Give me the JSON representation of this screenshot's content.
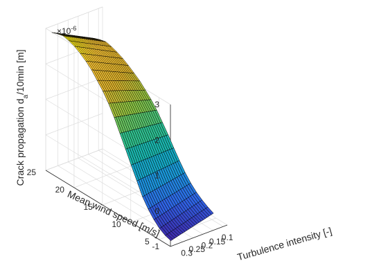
{
  "chart_data": {
    "type": "surface3d",
    "title": "",
    "xlabel": "Turbulence intensity [-]",
    "ylabel": "Mean wind speed [m/s]",
    "zlabel": "Crack propagation d_a/10min [m]",
    "z_exponent_label": "×10",
    "z_exponent_power": "-6",
    "xlim": [
      0.08,
      0.36
    ],
    "ylim": [
      3,
      25
    ],
    "zlim": [
      -1,
      3
    ],
    "xticks": [
      "0.1",
      "0.15",
      "0.2",
      "0.25",
      "0.3"
    ],
    "xtick_values": [
      0.1,
      0.15,
      0.2,
      0.25,
      0.3
    ],
    "yticks": [
      "5",
      "10",
      "15",
      "20",
      "25"
    ],
    "ytick_values": [
      5,
      10,
      15,
      20,
      25
    ],
    "zticks": [
      "-1",
      "0",
      "1",
      "2",
      "3"
    ],
    "ztick_values": [
      -1,
      0,
      1,
      2,
      3
    ],
    "grid": true,
    "colormap": [
      "#3e26a8",
      "#2f63e4",
      "#1b94d9",
      "#12b2b8",
      "#33c389",
      "#8dc643",
      "#e3b72c",
      "#fec835",
      "#f9fb0e"
    ],
    "surface": {
      "x": [
        0.12,
        0.13,
        0.14,
        0.15,
        0.16,
        0.17,
        0.18,
        0.19,
        0.2,
        0.21,
        0.22,
        0.23,
        0.24,
        0.25,
        0.26,
        0.27,
        0.28,
        0.29,
        0.3,
        0.31,
        0.32,
        0.33
      ],
      "y": [
        4,
        5,
        6,
        7,
        8,
        9,
        10,
        11,
        12,
        13,
        14,
        15,
        16,
        17,
        18,
        19,
        20,
        21,
        22,
        23,
        24,
        25
      ],
      "z_at_x_max": [
        -1.0,
        -0.95,
        -0.85,
        -0.7,
        -0.5,
        -0.25,
        0.1,
        0.45,
        0.8,
        1.15,
        1.5,
        1.8,
        2.05,
        2.25,
        2.45,
        2.6,
        2.72,
        2.82,
        2.88,
        2.92,
        2.88,
        2.82
      ],
      "z_at_x_min": [
        -0.68,
        -0.6,
        -0.5,
        -0.38,
        -0.22,
        -0.02,
        0.22,
        0.48,
        0.75,
        1.0,
        1.25,
        1.45,
        1.62,
        1.78,
        1.9,
        2.02,
        2.12,
        2.2,
        2.26,
        2.3,
        2.26,
        2.2
      ]
    }
  }
}
